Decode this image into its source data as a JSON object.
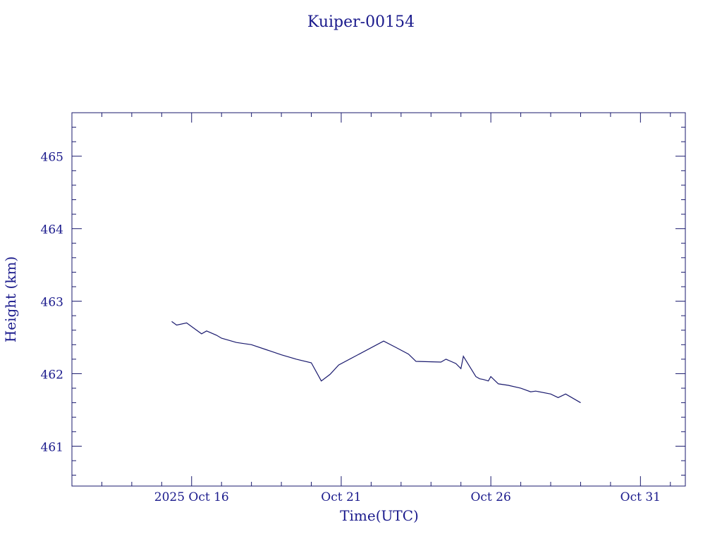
{
  "chart_data": {
    "type": "line",
    "title": "Kuiper-00154",
    "xlabel": "Time(UTC)",
    "ylabel": "Height (km)",
    "x_tick_labels": [
      "2025 Oct 16",
      "Oct 21",
      "Oct 26",
      "Oct 31"
    ],
    "x_tick_dates": [
      "2025-10-16",
      "2025-10-21",
      "2025-10-26",
      "2025-10-31"
    ],
    "xlim": [
      "2025-10-12T00:00",
      "2025-11-01T12:00"
    ],
    "y_ticks": [
      461,
      462,
      463,
      464,
      465
    ],
    "ylim": [
      460.45,
      465.6
    ],
    "grid": false,
    "line_color": "#1a1a6e",
    "text_color": "#1a1a8c",
    "series": [
      {
        "x": [
          "2025-10-15T08:00",
          "2025-10-15T12:00",
          "2025-10-15T20:00",
          "2025-10-16T00:00",
          "2025-10-16T08:00",
          "2025-10-16T12:00",
          "2025-10-16T20:00",
          "2025-10-17T00:00",
          "2025-10-17T12:00",
          "2025-10-18T00:00",
          "2025-10-18T12:00",
          "2025-10-19T00:00",
          "2025-10-19T12:00",
          "2025-10-20T00:00",
          "2025-10-20T08:00",
          "2025-10-20T15:00",
          "2025-10-20T22:00",
          "2025-10-22T10:00",
          "2025-10-22T20:00",
          "2025-10-23T06:00",
          "2025-10-23T12:00",
          "2025-10-24T08:00",
          "2025-10-24T12:00",
          "2025-10-24T20:00",
          "2025-10-25T00:00",
          "2025-10-25T02:00",
          "2025-10-25T12:00",
          "2025-10-25T15:00",
          "2025-10-25T18:00",
          "2025-10-25T22:00",
          "2025-10-26T00:00",
          "2025-10-26T06:00",
          "2025-10-26T14:00",
          "2025-10-27T00:00",
          "2025-10-27T08:00",
          "2025-10-27T12:00",
          "2025-10-28T00:00",
          "2025-10-28T06:00",
          "2025-10-28T12:00",
          "2025-10-29T00:00"
        ],
        "y": [
          462.72,
          462.67,
          462.7,
          462.65,
          462.55,
          462.59,
          462.53,
          462.49,
          462.43,
          462.4,
          462.33,
          462.26,
          462.2,
          462.15,
          461.9,
          461.99,
          462.12,
          462.45,
          462.36,
          462.27,
          462.17,
          462.16,
          462.2,
          462.14,
          462.07,
          462.24,
          461.96,
          461.93,
          461.92,
          461.9,
          461.96,
          461.86,
          461.84,
          461.8,
          461.75,
          461.76,
          461.72,
          461.67,
          461.72,
          461.6
        ]
      }
    ]
  }
}
